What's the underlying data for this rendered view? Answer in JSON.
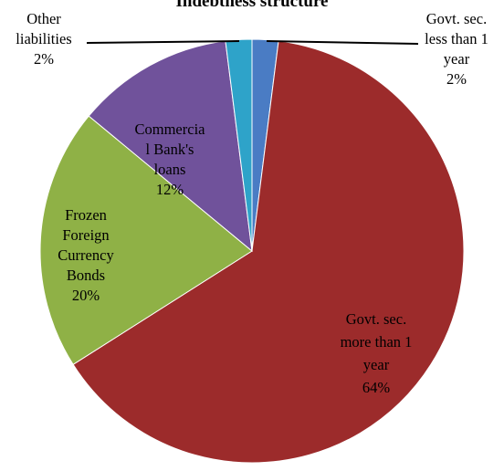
{
  "chart_data": {
    "type": "pie",
    "title": "Indebtness structure",
    "slices": [
      {
        "label": "Govt. sec. less than 1 year",
        "value": 2,
        "value_label": "2%",
        "color": "#4a7cc4",
        "label_lines": [
          "Govt. sec.",
          "less than 1",
          "year",
          "2%"
        ]
      },
      {
        "label": "Govt. sec. more than 1 year",
        "value": 64,
        "value_label": "64%",
        "color": "#9c2b2b",
        "label_lines": [
          "Govt. sec.",
          "more than 1",
          "year",
          "64%"
        ]
      },
      {
        "label": "Frozen Foreign Currency Bonds",
        "value": 20,
        "value_label": "20%",
        "color": "#8fb146",
        "label_lines": [
          "Frozen",
          "Foreign",
          "Currency",
          "Bonds",
          "20%"
        ]
      },
      {
        "label": "Commercial Bank's loans",
        "value": 12,
        "value_label": "12%",
        "color": "#70529b",
        "label_lines": [
          "Commercia",
          "l Bank's",
          "loans",
          "12%"
        ]
      },
      {
        "label": "Other liabilities",
        "value": 2,
        "value_label": "2%",
        "color": "#2ea3c9",
        "label_lines": [
          "Other",
          "liabilities",
          "2%"
        ]
      }
    ],
    "legend": "none",
    "labels": "data labels with leader lines for small slices"
  }
}
